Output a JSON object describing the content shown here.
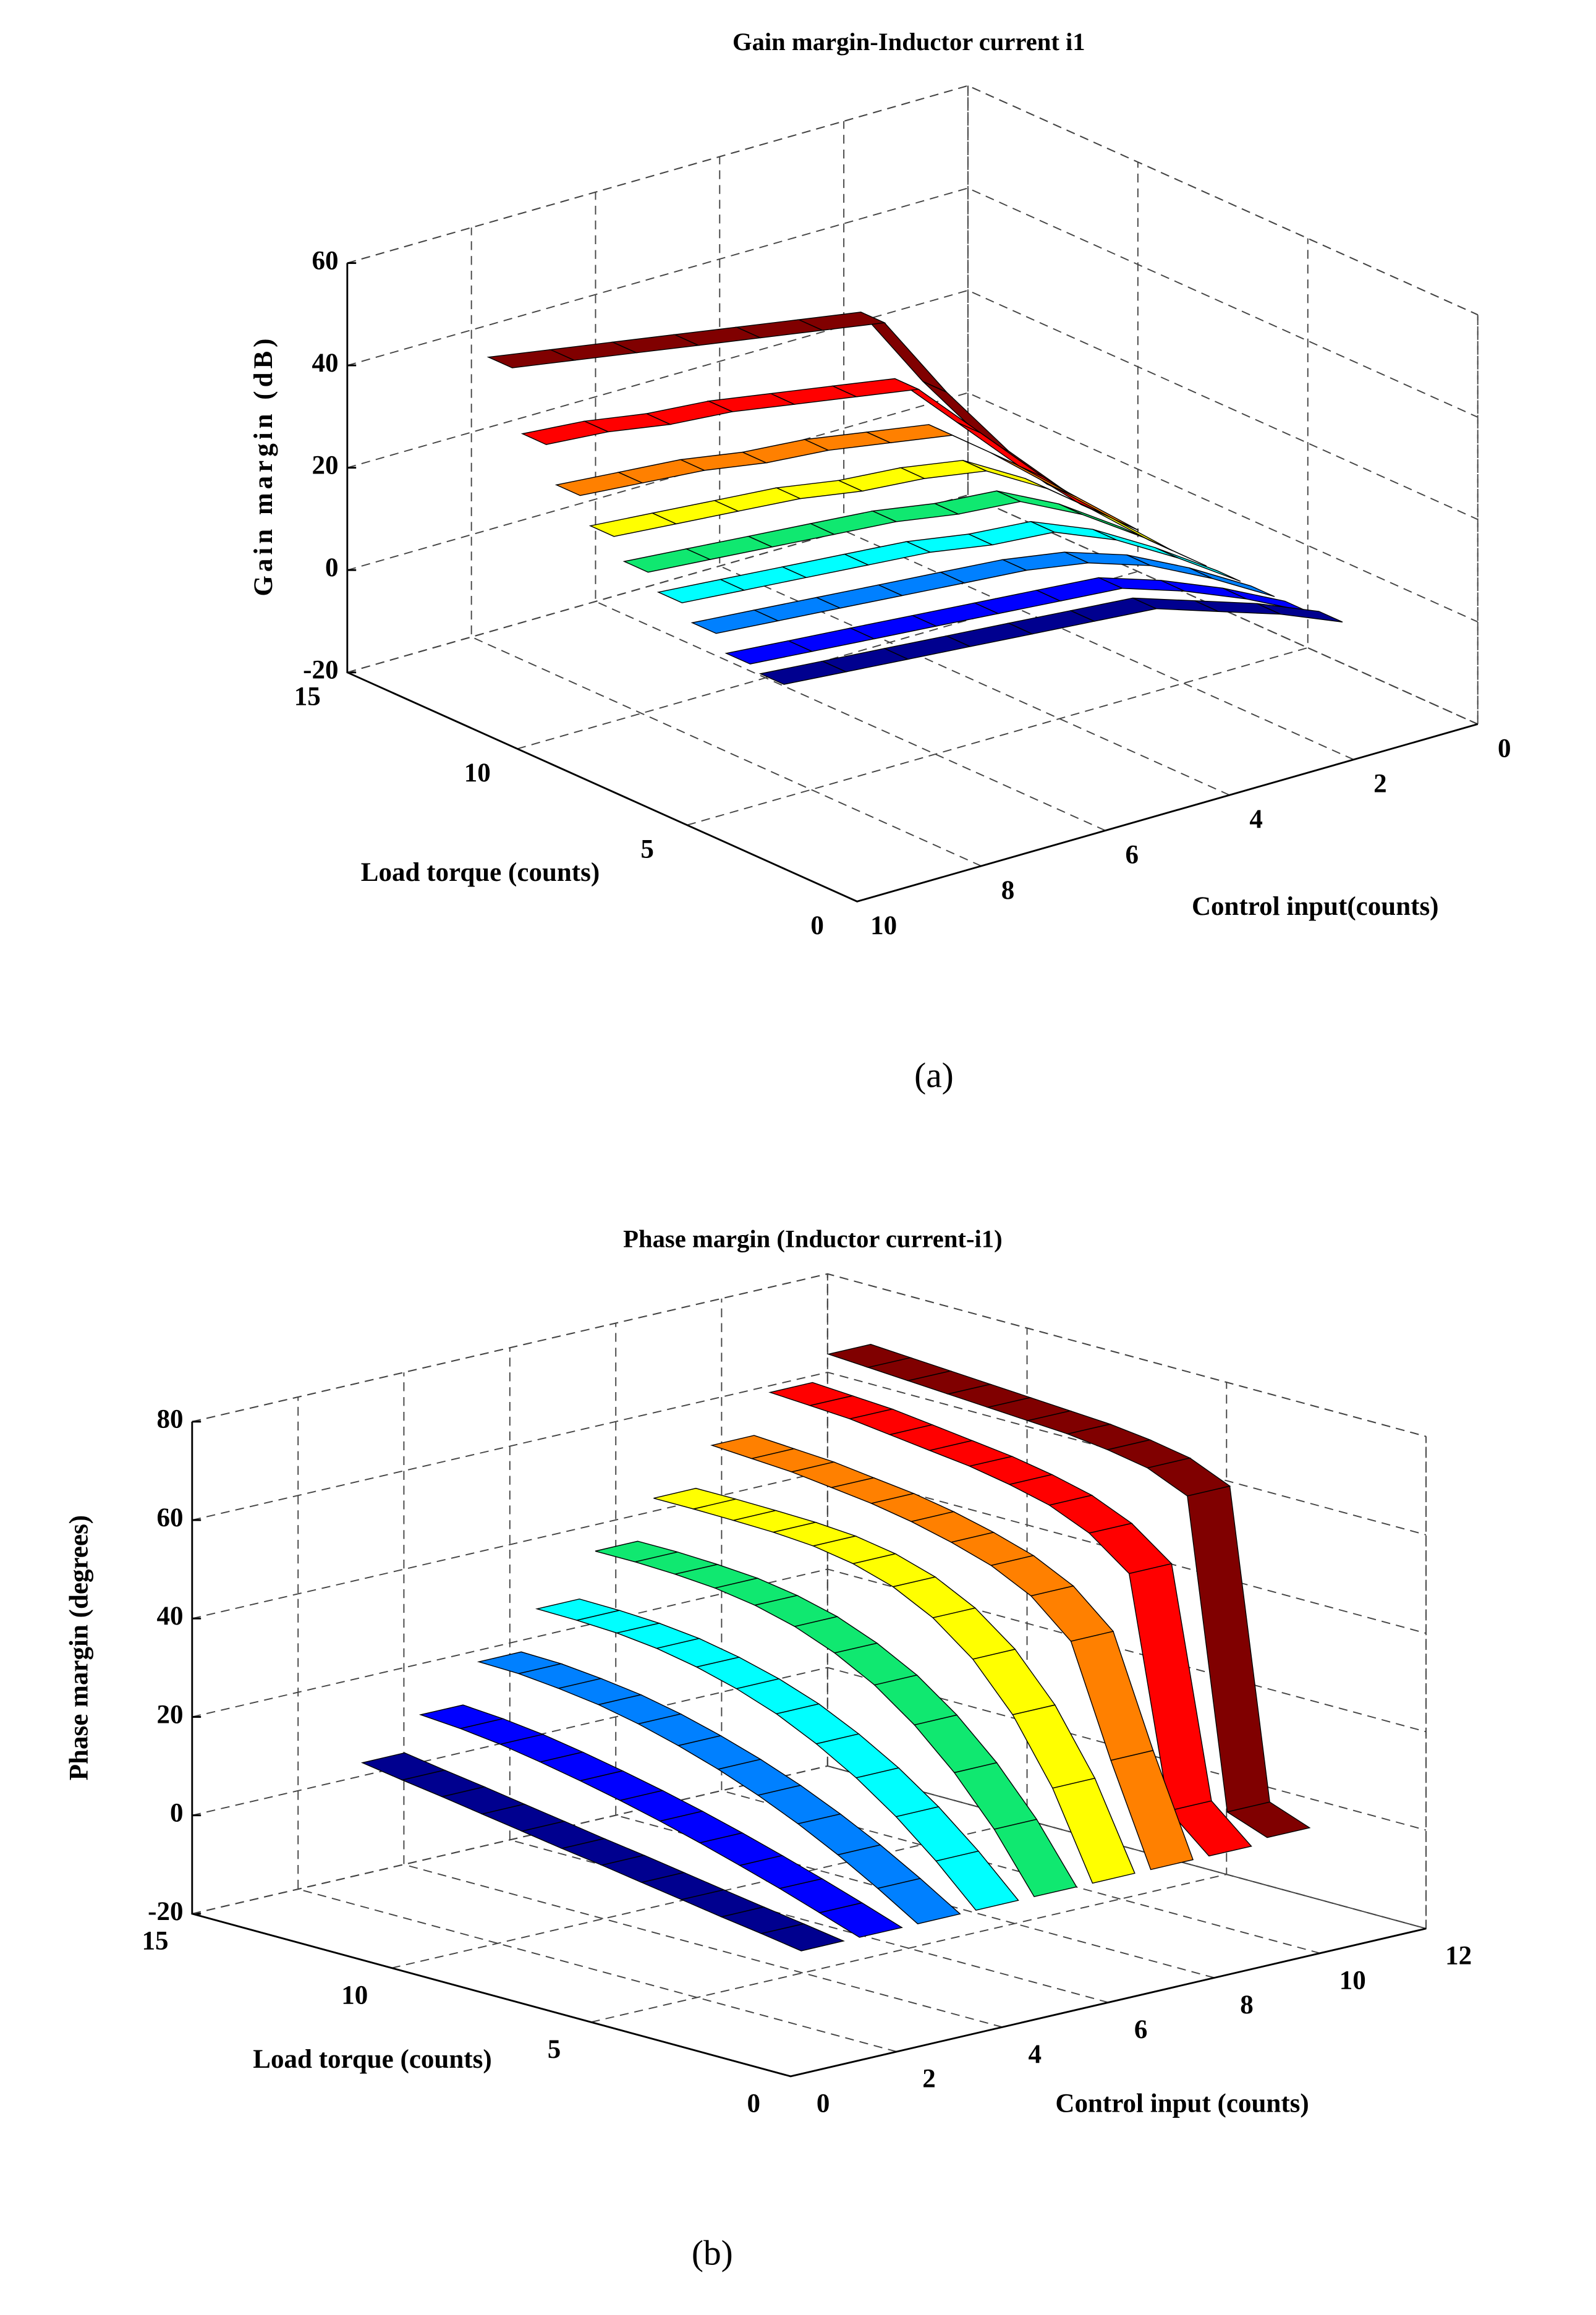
{
  "chart_data": [
    {
      "type": "ribbon3d",
      "title": "Gain margin-Inductor current i1",
      "caption": "(a)",
      "xlabel": "Control input(counts)",
      "ylabel": "Load torque (counts)",
      "zlabel": "Gain margin (dB)",
      "ribbon_axis": "x",
      "grid": true,
      "xlim": [
        0,
        10
      ],
      "xticks": [
        0,
        2,
        4,
        6,
        8,
        10
      ],
      "ylim": [
        0,
        15
      ],
      "yticks": [
        0,
        5,
        10,
        15
      ],
      "zlim": [
        -20,
        60
      ],
      "zticks": [
        -20,
        0,
        20,
        40,
        60
      ],
      "samples": [
        10,
        9,
        8,
        7,
        6,
        5,
        4,
        3,
        2,
        1
      ],
      "series": [
        {
          "color": "#800000",
          "position": 10.5,
          "values": [
            54,
            52,
            50,
            48,
            46,
            44,
            42,
            25,
            10,
            -2
          ]
        },
        {
          "color": "#ff0000",
          "position": 9.5,
          "values": [
            42,
            41,
            39,
            38,
            36,
            34,
            32,
            20,
            8,
            -3
          ]
        },
        {
          "color": "#ff8000",
          "position": 8.5,
          "values": [
            35,
            34,
            33,
            31,
            30,
            28,
            26,
            17,
            7,
            -3
          ]
        },
        {
          "color": "#ffff00",
          "position": 7.5,
          "values": [
            30,
            29,
            28,
            27,
            25,
            24,
            22,
            15,
            6,
            -4
          ]
        },
        {
          "color": "#10e870",
          "position": 6.5,
          "values": [
            26,
            25,
            24,
            23,
            22,
            20,
            19,
            13,
            5,
            -4
          ]
        },
        {
          "color": "#00ffff",
          "position": 5.5,
          "values": [
            23,
            22,
            21,
            20,
            19,
            17,
            16,
            11,
            4,
            -4
          ]
        },
        {
          "color": "#0080ff",
          "position": 4.5,
          "values": [
            20,
            19,
            18,
            17,
            16,
            15,
            13,
            9,
            3,
            -4
          ]
        },
        {
          "color": "#0000ff",
          "position": 3.5,
          "values": [
            17,
            16,
            15,
            14,
            13,
            12,
            11,
            7,
            2,
            -4
          ]
        },
        {
          "color": "#00008f",
          "position": 2.5,
          "values": [
            16,
            15,
            14,
            13,
            12,
            11,
            10,
            6,
            2,
            -3
          ]
        }
      ]
    },
    {
      "type": "ribbon3d",
      "title": "Phase margin (Inductor current-i1)",
      "caption": "(b)",
      "xlabel": "Control input (counts)",
      "ylabel": "Load torque (counts)",
      "zlabel": "Phase margin (degrees)",
      "ribbon_axis": "y",
      "grid": true,
      "xlim": [
        0,
        12
      ],
      "xticks": [
        0,
        2,
        4,
        6,
        8,
        10,
        12
      ],
      "ylim": [
        0,
        15
      ],
      "yticks": [
        0,
        5,
        10,
        15
      ],
      "zlim": [
        -20,
        80
      ],
      "zticks": [
        -20,
        0,
        20,
        40,
        60,
        80
      ],
      "samples": [
        11,
        10,
        9,
        8,
        7,
        6,
        5,
        4,
        3,
        2,
        1,
        0
      ],
      "series": [
        {
          "color": "#00008f",
          "position": 0.6,
          "values": [
            19,
            17.7,
            16.5,
            15.2,
            13.9,
            12.6,
            11.4,
            10.1,
            8.8,
            7.5,
            6.3,
            5
          ]
        },
        {
          "color": "#0000ff",
          "position": 1.7,
          "values": [
            26,
            25.4,
            24.4,
            23,
            21.4,
            19.6,
            17.6,
            15.4,
            13,
            10.5,
            7.8,
            5
          ]
        },
        {
          "color": "#0080ff",
          "position": 2.8,
          "values": [
            34,
            33.8,
            33,
            31.9,
            30.2,
            28,
            25.4,
            22.3,
            18.7,
            14.6,
            10,
            5
          ]
        },
        {
          "color": "#00ffff",
          "position": 3.9,
          "values": [
            42,
            41.9,
            41.5,
            40.6,
            39,
            36.8,
            33.9,
            30,
            25.3,
            19.6,
            12.8,
            5
          ]
        },
        {
          "color": "#10e870",
          "position": 5.0,
          "values": [
            51,
            51,
            50.7,
            50.1,
            48.8,
            46.7,
            43.5,
            39.2,
            33.3,
            25.8,
            16.5,
            5
          ]
        },
        {
          "color": "#ffff00",
          "position": 6.1,
          "values": [
            59,
            59,
            58.9,
            58.7,
            58.1,
            56.7,
            54.2,
            50.1,
            43.9,
            34.8,
            22.1,
            5
          ]
        },
        {
          "color": "#ff8000",
          "position": 7.2,
          "values": [
            67,
            66.5,
            66,
            65,
            64,
            62.5,
            60.5,
            58,
            54,
            47,
            25,
            5
          ]
        },
        {
          "color": "#ff0000",
          "position": 8.3,
          "values": [
            75,
            74.5,
            74,
            73,
            72,
            71,
            69.5,
            67.5,
            64,
            58,
            12,
            5
          ]
        },
        {
          "color": "#800000",
          "position": 9.4,
          "values": [
            80,
            79.5,
            79,
            78.5,
            78,
            77.5,
            77,
            76,
            74.5,
            71,
            9,
            6
          ]
        }
      ]
    }
  ]
}
